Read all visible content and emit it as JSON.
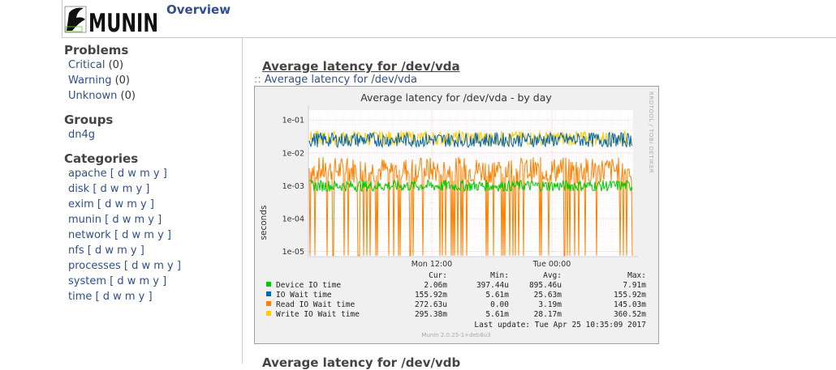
{
  "header": {
    "logo_text": "MUNIN",
    "overview_label": "Overview"
  },
  "sidebar": {
    "problems_title": "Problems",
    "problems": [
      {
        "label": "Critical",
        "count": "(0)"
      },
      {
        "label": "Warning",
        "count": "(0)"
      },
      {
        "label": "Unknown",
        "count": "(0)"
      }
    ],
    "groups_title": "Groups",
    "groups": [
      "dn4g"
    ],
    "categories_title": "Categories",
    "categories": [
      {
        "label": "apache",
        "links": "[ d w m y ]"
      },
      {
        "label": "disk",
        "links": "[ d w m y ]"
      },
      {
        "label": "exim",
        "links": "[ d w m y ]"
      },
      {
        "label": "munin",
        "links": "[ d w m y ]"
      },
      {
        "label": "network",
        "links": "[ d w m y ]"
      },
      {
        "label": "nfs",
        "links": "[ d w m y ]"
      },
      {
        "label": "processes",
        "links": "[ d w m y ]"
      },
      {
        "label": "system",
        "links": "[ d w m y ]"
      },
      {
        "label": "time",
        "links": "[ d w m y ]"
      }
    ]
  },
  "main": {
    "graph_title": "Average latency for /dev/vda",
    "graph_link_prefix": "::",
    "graph_link": "Average latency for /dev/vda",
    "next_title": "Average latency for /dev/vdb"
  },
  "chart_data": {
    "type": "line",
    "title": "Average latency for /dev/vda - by day",
    "ylabel": "seconds",
    "side_label": "RRDTOOL / TOBI OETIKER",
    "y_scale": "log",
    "ylim": [
      7e-06,
      0.2
    ],
    "y_ticks": [
      "1e-01",
      "1e-02",
      "1e-03",
      "1e-04",
      "1e-05"
    ],
    "x_ticks": [
      "Mon 12:00",
      "Tue 00:00"
    ],
    "grid": true,
    "legend_position": "bottom",
    "legend_headers": [
      "Cur:",
      "Min:",
      "Avg:",
      "Max:"
    ],
    "series": [
      {
        "name": "Device IO time",
        "color": "#00cc00",
        "level": 0.001,
        "cur": "2.06m",
        "min": "397.44u",
        "avg": "895.46u",
        "max": "7.91m"
      },
      {
        "name": "IO Wait time",
        "color": "#0066b3",
        "level": 0.025,
        "cur": "155.92m",
        "min": "5.61m",
        "avg": "25.63m",
        "max": "155.92m"
      },
      {
        "name": "Read IO Wait time",
        "color": "#ff8000",
        "level": 0.003,
        "cur": "272.63u",
        "min": "0.00",
        "avg": "3.19m",
        "max": "145.03m"
      },
      {
        "name": "Write IO Wait time",
        "color": "#ffcc00",
        "level": 0.028,
        "cur": "295.38m",
        "min": "5.61m",
        "avg": "28.17m",
        "max": "360.52m"
      }
    ],
    "last_update": "Last update:  Tue Apr 25 10:35:09 2017",
    "footer": "Munin 2.0.25-1+deb8u3"
  }
}
